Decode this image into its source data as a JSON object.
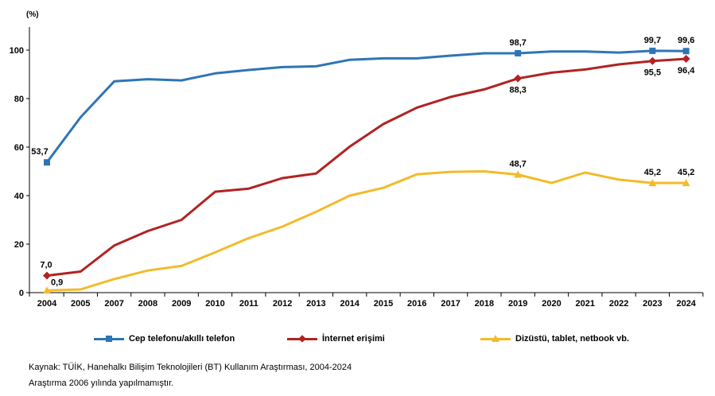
{
  "chart_data": {
    "type": "line",
    "unit_label": "(%)",
    "categories": [
      "2004",
      "2005",
      "2007",
      "2008",
      "2009",
      "2010",
      "2011",
      "2012",
      "2013",
      "2014",
      "2015",
      "2016",
      "2017",
      "2018",
      "2019",
      "2020",
      "2021",
      "2022",
      "2023",
      "2024"
    ],
    "ylim": [
      0,
      110
    ],
    "yticks": [
      0,
      20,
      40,
      60,
      80,
      100
    ],
    "grid": false,
    "legend_position": "bottom",
    "series": [
      {
        "name": "Cep telefonu/akıllı telefon",
        "color": "#2E75B6",
        "marker": "square",
        "values": [
          53.7,
          72.3,
          87.1,
          88.0,
          87.5,
          90.4,
          91.8,
          93.0,
          93.3,
          96.0,
          96.6,
          96.6,
          97.7,
          98.7,
          98.7,
          99.4,
          99.4,
          99.0,
          99.7,
          99.6
        ],
        "labels": [
          {
            "index": 0,
            "text": "53,7",
            "pos": "above"
          },
          {
            "index": 14,
            "text": "98,7",
            "pos": "above"
          },
          {
            "index": 18,
            "text": "99,7",
            "pos": "above"
          },
          {
            "index": 19,
            "text": "99,6",
            "pos": "above"
          }
        ]
      },
      {
        "name": "İnternet erişimi",
        "color": "#B22222",
        "marker": "diamond",
        "values": [
          7.0,
          8.7,
          19.4,
          25.4,
          30.0,
          41.6,
          42.9,
          47.2,
          49.1,
          60.2,
          69.5,
          76.3,
          80.7,
          83.8,
          88.3,
          90.7,
          92.0,
          94.1,
          95.5,
          96.4
        ],
        "labels": [
          {
            "index": 0,
            "text": "7,0",
            "pos": "above"
          },
          {
            "index": 14,
            "text": "88,3",
            "pos": "below"
          },
          {
            "index": 18,
            "text": "95,5",
            "pos": "below"
          },
          {
            "index": 19,
            "text": "96,4",
            "pos": "below"
          }
        ]
      },
      {
        "name": "Dizüstü, tablet, netbook vb.",
        "color": "#F2BB2A",
        "marker": "triangle",
        "values": [
          0.9,
          1.3,
          5.6,
          9.1,
          11.0,
          16.6,
          22.5,
          27.2,
          33.3,
          40.0,
          43.2,
          48.8,
          49.8,
          50.0,
          48.7,
          45.2,
          49.5,
          46.6,
          45.2,
          45.2
        ],
        "labels": [
          {
            "index": 0,
            "text": "0,9",
            "pos": "above-right"
          },
          {
            "index": 14,
            "text": "48,7",
            "pos": "above"
          },
          {
            "index": 18,
            "text": "45,2",
            "pos": "above"
          },
          {
            "index": 19,
            "text": "45,2",
            "pos": "above"
          }
        ]
      }
    ]
  },
  "notes": {
    "source": "Kaynak: TÜİK, Hanehalkı Bilişim Teknolojileri (BT) Kullanım Araştırması, 2004-2024",
    "note": "Araştırma 2006 yılında yapılmamıştır."
  }
}
